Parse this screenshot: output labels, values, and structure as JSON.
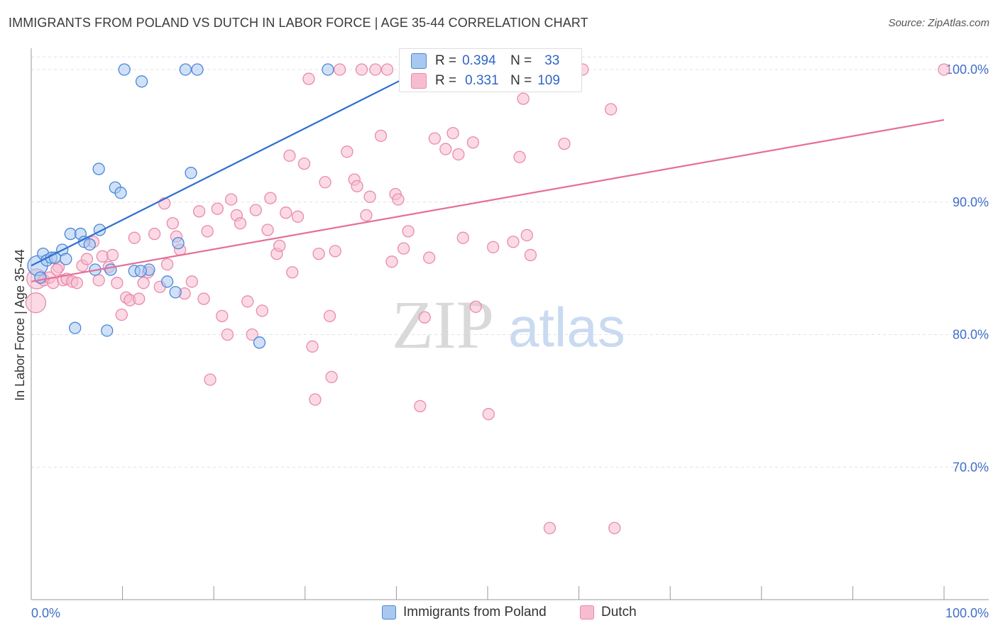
{
  "title": "IMMIGRANTS FROM POLAND VS DUTCH IN LABOR FORCE | AGE 35-44 CORRELATION CHART",
  "source": "Source: ZipAtlas.com",
  "watermark": {
    "zip": "ZIP",
    "atlas": "atlas"
  },
  "legend": {
    "series1": {
      "r_label": "R =",
      "r_value": "0.394",
      "n_label": "N =",
      "n_value": "33"
    },
    "series2": {
      "r_label": "R =",
      "r_value": "0.331",
      "n_label": "N =",
      "n_value": "109"
    }
  },
  "bottom_legend": {
    "series1": "Immigrants from Poland",
    "series2": "Dutch"
  },
  "colors": {
    "blue_fill": "#a9c8f0",
    "blue_stroke": "#4a86d8",
    "blue_line": "#2f6fd0",
    "pink_fill": "#f7bcd0",
    "pink_stroke": "#e98aac",
    "pink_line": "#e56f97",
    "grid": "#e0e0e0",
    "tick_text": "#3f6fc7"
  },
  "chart_data": {
    "type": "scatter",
    "title": "IMMIGRANTS FROM POLAND VS DUTCH IN LABOR FORCE | AGE 35-44 CORRELATION CHART",
    "xlabel": "",
    "ylabel": "In Labor Force | Age 35-44",
    "xlim": [
      0,
      100
    ],
    "ylim": [
      60,
      101.5
    ],
    "x_tick_labels": [
      "0.0%",
      "100.0%"
    ],
    "y_ticks": [
      70,
      80,
      90,
      100
    ],
    "y_tick_labels": [
      "70.0%",
      "80.0%",
      "90.0%",
      "100.0%"
    ],
    "series": [
      {
        "name": "Immigrants from Poland",
        "R": 0.394,
        "N": 33,
        "trend": {
          "x": [
            0,
            40.5
          ],
          "y": [
            85.2,
            99.2
          ]
        },
        "points": [
          {
            "x": 0.7,
            "y": 85.2,
            "big": true
          },
          {
            "x": 1.3,
            "y": 86.1
          },
          {
            "x": 1.7,
            "y": 85.6
          },
          {
            "x": 2.2,
            "y": 85.8
          },
          {
            "x": 2.6,
            "y": 85.8
          },
          {
            "x": 3.4,
            "y": 86.4
          },
          {
            "x": 3.8,
            "y": 85.7
          },
          {
            "x": 4.3,
            "y": 87.6
          },
          {
            "x": 5.4,
            "y": 87.6
          },
          {
            "x": 5.8,
            "y": 87.0
          },
          {
            "x": 6.4,
            "y": 86.8
          },
          {
            "x": 7.0,
            "y": 84.9
          },
          {
            "x": 7.5,
            "y": 87.9
          },
          {
            "x": 8.7,
            "y": 84.9
          },
          {
            "x": 11.3,
            "y": 84.8
          },
          {
            "x": 12.9,
            "y": 84.9
          },
          {
            "x": 14.9,
            "y": 84.0
          },
          {
            "x": 16.1,
            "y": 86.9
          },
          {
            "x": 7.4,
            "y": 92.5
          },
          {
            "x": 9.2,
            "y": 91.1
          },
          {
            "x": 9.8,
            "y": 90.7
          },
          {
            "x": 17.5,
            "y": 92.2
          },
          {
            "x": 10.2,
            "y": 100.0
          },
          {
            "x": 12.1,
            "y": 99.1
          },
          {
            "x": 16.9,
            "y": 100.0
          },
          {
            "x": 18.2,
            "y": 100.0
          },
          {
            "x": 32.5,
            "y": 100.0
          },
          {
            "x": 4.8,
            "y": 80.5
          },
          {
            "x": 8.3,
            "y": 80.3
          },
          {
            "x": 15.8,
            "y": 83.2
          },
          {
            "x": 25.0,
            "y": 79.4
          },
          {
            "x": 12.0,
            "y": 84.8
          },
          {
            "x": 1.0,
            "y": 84.3
          }
        ]
      },
      {
        "name": "Dutch",
        "R": 0.331,
        "N": 109,
        "trend": {
          "x": [
            0,
            100
          ],
          "y": [
            84.0,
            96.2
          ]
        },
        "points": [
          {
            "x": 0.5,
            "y": 82.4,
            "big": true
          },
          {
            "x": 0.6,
            "y": 84.2,
            "big": true
          },
          {
            "x": 1.4,
            "y": 84.1
          },
          {
            "x": 2.0,
            "y": 84.3
          },
          {
            "x": 2.4,
            "y": 83.9
          },
          {
            "x": 3.0,
            "y": 85.1
          },
          {
            "x": 3.5,
            "y": 84.1
          },
          {
            "x": 3.9,
            "y": 84.2
          },
          {
            "x": 4.5,
            "y": 84.0
          },
          {
            "x": 5.0,
            "y": 83.9
          },
          {
            "x": 5.6,
            "y": 85.2
          },
          {
            "x": 6.1,
            "y": 85.7
          },
          {
            "x": 6.8,
            "y": 87.0
          },
          {
            "x": 7.4,
            "y": 84.1
          },
          {
            "x": 7.8,
            "y": 85.9
          },
          {
            "x": 8.5,
            "y": 85.1
          },
          {
            "x": 8.9,
            "y": 86.0
          },
          {
            "x": 9.4,
            "y": 83.9
          },
          {
            "x": 9.9,
            "y": 81.5
          },
          {
            "x": 10.4,
            "y": 82.8
          },
          {
            "x": 10.8,
            "y": 82.6
          },
          {
            "x": 11.3,
            "y": 87.3
          },
          {
            "x": 11.8,
            "y": 82.7
          },
          {
            "x": 12.3,
            "y": 83.9
          },
          {
            "x": 12.8,
            "y": 84.7
          },
          {
            "x": 13.5,
            "y": 87.6
          },
          {
            "x": 14.1,
            "y": 83.6
          },
          {
            "x": 14.6,
            "y": 89.9
          },
          {
            "x": 14.9,
            "y": 85.3
          },
          {
            "x": 15.5,
            "y": 88.4
          },
          {
            "x": 15.9,
            "y": 87.4
          },
          {
            "x": 16.3,
            "y": 86.4
          },
          {
            "x": 16.8,
            "y": 83.1
          },
          {
            "x": 17.6,
            "y": 84.0
          },
          {
            "x": 18.4,
            "y": 89.3
          },
          {
            "x": 18.9,
            "y": 82.7
          },
          {
            "x": 19.3,
            "y": 87.8
          },
          {
            "x": 19.6,
            "y": 76.6
          },
          {
            "x": 20.4,
            "y": 89.5
          },
          {
            "x": 20.9,
            "y": 81.4
          },
          {
            "x": 21.5,
            "y": 80.0
          },
          {
            "x": 21.9,
            "y": 90.2
          },
          {
            "x": 22.5,
            "y": 89.0
          },
          {
            "x": 22.9,
            "y": 88.4
          },
          {
            "x": 23.7,
            "y": 82.5
          },
          {
            "x": 24.2,
            "y": 80.0
          },
          {
            "x": 24.6,
            "y": 89.4
          },
          {
            "x": 25.3,
            "y": 81.8
          },
          {
            "x": 25.9,
            "y": 87.9
          },
          {
            "x": 26.2,
            "y": 90.3
          },
          {
            "x": 26.9,
            "y": 86.1
          },
          {
            "x": 27.2,
            "y": 86.7
          },
          {
            "x": 27.9,
            "y": 89.2
          },
          {
            "x": 28.3,
            "y": 93.5
          },
          {
            "x": 28.6,
            "y": 84.7
          },
          {
            "x": 29.2,
            "y": 88.9
          },
          {
            "x": 29.9,
            "y": 92.9
          },
          {
            "x": 30.4,
            "y": 99.3
          },
          {
            "x": 30.8,
            "y": 79.1
          },
          {
            "x": 31.1,
            "y": 75.1
          },
          {
            "x": 31.5,
            "y": 86.1
          },
          {
            "x": 32.2,
            "y": 91.5
          },
          {
            "x": 32.7,
            "y": 81.4
          },
          {
            "x": 32.9,
            "y": 76.8
          },
          {
            "x": 33.3,
            "y": 86.3
          },
          {
            "x": 33.8,
            "y": 100.0
          },
          {
            "x": 34.6,
            "y": 93.8
          },
          {
            "x": 35.4,
            "y": 91.7
          },
          {
            "x": 35.7,
            "y": 91.2
          },
          {
            "x": 36.2,
            "y": 100.0
          },
          {
            "x": 36.7,
            "y": 89.0
          },
          {
            "x": 37.1,
            "y": 90.4
          },
          {
            "x": 37.7,
            "y": 100.0
          },
          {
            "x": 38.3,
            "y": 95.0
          },
          {
            "x": 39.0,
            "y": 100.0
          },
          {
            "x": 39.5,
            "y": 85.5
          },
          {
            "x": 39.9,
            "y": 90.6
          },
          {
            "x": 40.2,
            "y": 90.2
          },
          {
            "x": 40.8,
            "y": 86.5
          },
          {
            "x": 41.3,
            "y": 87.8
          },
          {
            "x": 42.1,
            "y": 99.1
          },
          {
            "x": 42.6,
            "y": 74.6
          },
          {
            "x": 43.1,
            "y": 81.3
          },
          {
            "x": 43.6,
            "y": 85.8
          },
          {
            "x": 44.2,
            "y": 94.8
          },
          {
            "x": 45.4,
            "y": 94.0
          },
          {
            "x": 46.2,
            "y": 95.2
          },
          {
            "x": 46.8,
            "y": 93.6
          },
          {
            "x": 47.3,
            "y": 87.3
          },
          {
            "x": 47.8,
            "y": 100.0
          },
          {
            "x": 48.7,
            "y": 82.1
          },
          {
            "x": 48.4,
            "y": 94.5
          },
          {
            "x": 50.1,
            "y": 74.0
          },
          {
            "x": 50.6,
            "y": 86.6
          },
          {
            "x": 52.0,
            "y": 100.0
          },
          {
            "x": 52.8,
            "y": 87.0
          },
          {
            "x": 53.5,
            "y": 93.4
          },
          {
            "x": 53.9,
            "y": 97.8
          },
          {
            "x": 54.3,
            "y": 87.5
          },
          {
            "x": 54.7,
            "y": 86.0
          },
          {
            "x": 56.2,
            "y": 100.0
          },
          {
            "x": 58.4,
            "y": 94.4
          },
          {
            "x": 59.4,
            "y": 100.0
          },
          {
            "x": 60.4,
            "y": 100.0
          },
          {
            "x": 56.8,
            "y": 65.4
          },
          {
            "x": 63.5,
            "y": 97.0
          },
          {
            "x": 63.9,
            "y": 65.4
          },
          {
            "x": 100.0,
            "y": 100.0
          },
          {
            "x": 2.8,
            "y": 84.9
          }
        ]
      }
    ]
  }
}
